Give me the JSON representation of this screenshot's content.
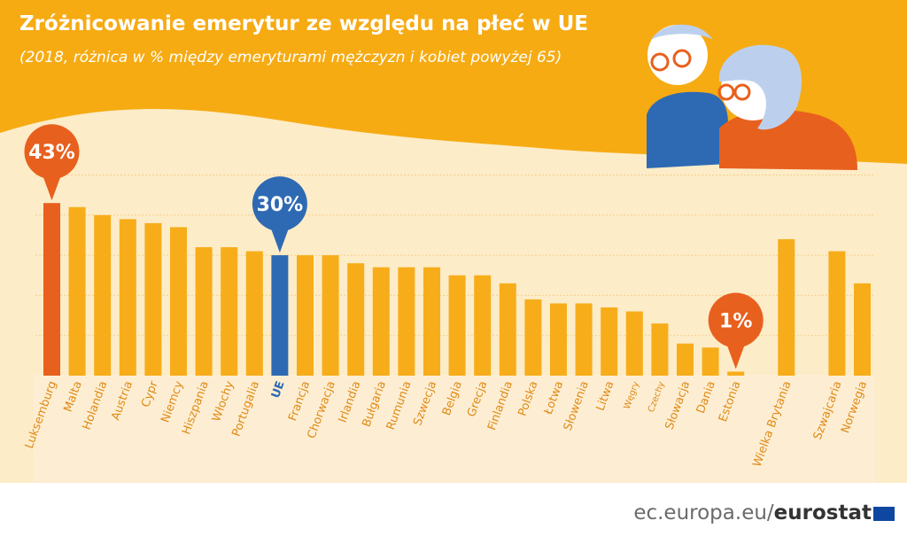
{
  "header": {
    "title": "Zróżnicowanie emerytur ze względu na płeć w UE",
    "subtitle": "(2018, różnica w % między emeryturami mężczyzn i kobiet powyżej 65)"
  },
  "footer": {
    "url": "ec.europa.eu/",
    "brand": "eurostat"
  },
  "colors": {
    "orange_bg": "#f6ab13",
    "cream_bg": "#fdecc8",
    "bar_default": "#f7ad1a",
    "bar_highlight_max": "#e8601d",
    "bar_eu": "#2e6ab3",
    "label_text": "#e08a17",
    "label_eu": "#2e6ab3",
    "footer_text": "#6b6b6b"
  },
  "chart_data": {
    "type": "bar",
    "categories": [
      "Luksemburg",
      "Malta",
      "Holandia",
      "Austria",
      "Cypr",
      "Niemcy",
      "Hiszpania",
      "Włochy",
      "Portugalia",
      "UE",
      "Francja",
      "Chorwacja",
      "Irlandia",
      "Bułgaria",
      "Rumunia",
      "Szwecja",
      "Belgia",
      "Grecja",
      "Finlandia",
      "Polska",
      "Łotwa",
      "Słowenia",
      "Litwa",
      "Węgry",
      "Czechy",
      "Słowacja",
      "Dania",
      "Estonia",
      "Wielka Brytania",
      "Szwajcaria",
      "Norwegia"
    ],
    "values": [
      43,
      42,
      40,
      39,
      38,
      37,
      32,
      32,
      31,
      30,
      30,
      30,
      28,
      27,
      27,
      27,
      25,
      25,
      23,
      19,
      18,
      18,
      17,
      16,
      13,
      8,
      7,
      1,
      34,
      31,
      23
    ],
    "gap_after": [
      "Estonia",
      "Wielka Brytania"
    ],
    "callouts": [
      {
        "category": "Luksemburg",
        "label": "43%",
        "color": "#e8601d"
      },
      {
        "category": "UE",
        "label": "30%",
        "color": "#2e6ab3"
      },
      {
        "category": "Estonia",
        "label": "1%",
        "color": "#e8601d"
      }
    ],
    "ylim": [
      0,
      50
    ],
    "grid": true,
    "legend": "none"
  }
}
